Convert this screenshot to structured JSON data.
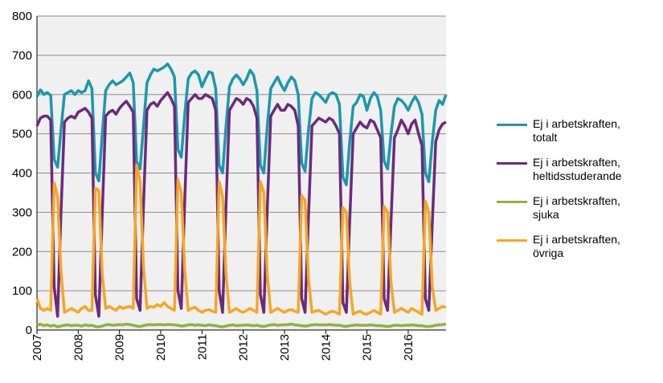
{
  "chart_data": {
    "type": "line",
    "categories": [
      "2007",
      null,
      null,
      null,
      null,
      null,
      null,
      null,
      null,
      null,
      null,
      null,
      "2008",
      null,
      null,
      null,
      null,
      null,
      null,
      null,
      null,
      null,
      null,
      null,
      "2009",
      null,
      null,
      null,
      null,
      null,
      null,
      null,
      null,
      null,
      null,
      null,
      "2010",
      null,
      null,
      null,
      null,
      null,
      null,
      null,
      null,
      null,
      null,
      null,
      "2011",
      null,
      null,
      null,
      null,
      null,
      null,
      null,
      null,
      null,
      null,
      null,
      "2012",
      null,
      null,
      null,
      null,
      null,
      null,
      null,
      null,
      null,
      null,
      null,
      "2013",
      null,
      null,
      null,
      null,
      null,
      null,
      null,
      null,
      null,
      null,
      null,
      "2014",
      null,
      null,
      null,
      null,
      null,
      null,
      null,
      null,
      null,
      null,
      null,
      "2015",
      null,
      null,
      null,
      null,
      null,
      null,
      null,
      null,
      null,
      null,
      null,
      "2016",
      null,
      null,
      null,
      null,
      null,
      null,
      null,
      null,
      null,
      null,
      null
    ],
    "ylim": [
      0,
      800
    ],
    "yticks": [
      0,
      100,
      200,
      300,
      400,
      500,
      600,
      700,
      800
    ],
    "grid": true,
    "series": [
      {
        "name": "Ej i arbetskraften, totalt",
        "color": "#1b98ad",
        "values": [
          595,
          612,
          600,
          605,
          598,
          435,
          415,
          510,
          600,
          605,
          610,
          600,
          610,
          605,
          610,
          635,
          615,
          400,
          380,
          500,
          610,
          625,
          635,
          625,
          630,
          635,
          645,
          655,
          630,
          430,
          410,
          520,
          630,
          650,
          665,
          660,
          665,
          670,
          678,
          665,
          645,
          460,
          440,
          550,
          640,
          655,
          660,
          650,
          620,
          640,
          658,
          655,
          615,
          420,
          400,
          520,
          620,
          640,
          650,
          640,
          625,
          640,
          662,
          650,
          610,
          420,
          400,
          520,
          615,
          630,
          645,
          625,
          610,
          630,
          645,
          635,
          600,
          425,
          405,
          510,
          590,
          605,
          600,
          590,
          580,
          600,
          605,
          600,
          575,
          390,
          370,
          480,
          570,
          580,
          600,
          595,
          560,
          590,
          605,
          595,
          560,
          430,
          410,
          500,
          570,
          590,
          585,
          575,
          560,
          580,
          595,
          580,
          550,
          400,
          378,
          480,
          560,
          585,
          575,
          600
        ]
      },
      {
        "name": "Ej i arbetskraften, heltidsstuderande",
        "color": "#6b2a7e",
        "values": [
          520,
          540,
          545,
          545,
          535,
          110,
          35,
          300,
          530,
          540,
          545,
          540,
          555,
          560,
          565,
          555,
          540,
          90,
          35,
          300,
          545,
          555,
          560,
          550,
          565,
          575,
          583,
          570,
          555,
          80,
          50,
          320,
          560,
          575,
          580,
          570,
          585,
          595,
          605,
          590,
          570,
          100,
          55,
          330,
          580,
          590,
          600,
          590,
          590,
          600,
          595,
          590,
          560,
          100,
          45,
          320,
          560,
          575,
          590,
          585,
          575,
          590,
          585,
          570,
          540,
          90,
          45,
          310,
          545,
          560,
          575,
          560,
          560,
          575,
          570,
          560,
          520,
          80,
          45,
          290,
          520,
          530,
          540,
          535,
          530,
          540,
          535,
          520,
          500,
          70,
          45,
          280,
          500,
          515,
          530,
          520,
          515,
          535,
          530,
          510,
          490,
          80,
          50,
          280,
          490,
          510,
          535,
          520,
          500,
          525,
          535,
          500,
          470,
          80,
          50,
          270,
          480,
          510,
          525,
          530
        ]
      },
      {
        "name": "Ej i arbetskraften, sjuka",
        "color": "#93b03f",
        "values": [
          12,
          15,
          11,
          13,
          10,
          12,
          8,
          10,
          12,
          13,
          11,
          12,
          12,
          10,
          13,
          11,
          12,
          9,
          8,
          10,
          13,
          14,
          12,
          13,
          14,
          13,
          15,
          14,
          12,
          10,
          9,
          11,
          13,
          14,
          13,
          14,
          14,
          13,
          14,
          14,
          13,
          12,
          10,
          11,
          13,
          14,
          12,
          13,
          12,
          11,
          13,
          12,
          11,
          9,
          8,
          10,
          12,
          13,
          11,
          12,
          12,
          13,
          12,
          11,
          12,
          10,
          9,
          11,
          13,
          14,
          12,
          13,
          13,
          14,
          15,
          13,
          12,
          11,
          10,
          11,
          13,
          14,
          13,
          13,
          13,
          14,
          13,
          12,
          12,
          10,
          9,
          11,
          12,
          13,
          12,
          12,
          12,
          13,
          12,
          11,
          11,
          10,
          9,
          10,
          12,
          12,
          11,
          12,
          12,
          13,
          12,
          11,
          11,
          9,
          9,
          10,
          12,
          13,
          14,
          15
        ]
      },
      {
        "name": "Ej i arbetskraften, övriga",
        "color": "#f6a623",
        "values": [
          80,
          55,
          50,
          55,
          50,
          375,
          340,
          150,
          45,
          50,
          55,
          50,
          45,
          55,
          60,
          50,
          50,
          362,
          355,
          140,
          55,
          60,
          55,
          50,
          60,
          55,
          58,
          60,
          55,
          420,
          380,
          160,
          55,
          60,
          58,
          65,
          60,
          70,
          60,
          55,
          50,
          383,
          350,
          150,
          50,
          55,
          58,
          50,
          45,
          50,
          52,
          48,
          45,
          378,
          340,
          140,
          45,
          50,
          55,
          48,
          45,
          50,
          55,
          50,
          45,
          378,
          350,
          140,
          45,
          50,
          55,
          50,
          45,
          50,
          52,
          48,
          45,
          342,
          330,
          130,
          45,
          48,
          50,
          45,
          40,
          45,
          48,
          45,
          40,
          312,
          300,
          120,
          40,
          45,
          48,
          42,
          40,
          45,
          50,
          45,
          40,
          315,
          300,
          120,
          45,
          50,
          55,
          50,
          45,
          55,
          50,
          45,
          40,
          328,
          300,
          110,
          50,
          55,
          60,
          58
        ]
      }
    ]
  }
}
